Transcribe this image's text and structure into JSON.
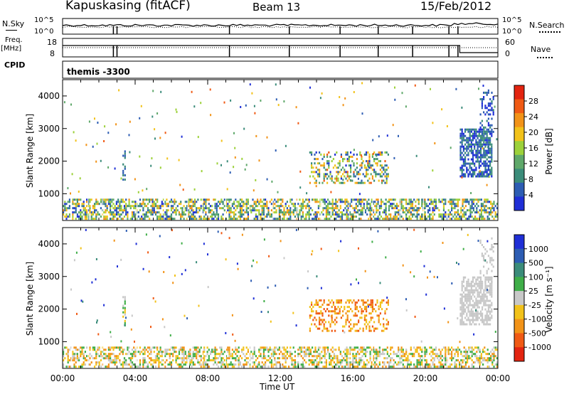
{
  "header": {
    "station": "Kapuskasing (fitACF)",
    "beam": "Beam 13",
    "date": "15/Feb/2012"
  },
  "top_panels": {
    "nsky_label": "N.Sky",
    "nsky_ticks": [
      "10^5",
      "10^0"
    ],
    "nsearch_label": "N.Search",
    "nsearch_ticks": [
      "10^5",
      "10^0"
    ],
    "freq_label_1": "Freq.",
    "freq_label_2": "[MHz]",
    "freq_ticks": [
      "18",
      "8"
    ],
    "nave_label": "Nave",
    "nave_ticks": [
      "60",
      "0"
    ],
    "cpid_label": "CPID",
    "cpid_value": "themis -3300"
  },
  "x_axis": {
    "label": "Time UT",
    "ticks": [
      "00:00",
      "04:00",
      "08:00",
      "12:00",
      "16:00",
      "20:00",
      "00:00"
    ]
  },
  "colors": {
    "power": [
      "#1f2fd6",
      "#2d5db3",
      "#3b8c7a",
      "#5fa86a",
      "#9cd13a",
      "#f2c21a",
      "#f29318",
      "#f05a14",
      "#e32410"
    ],
    "velocity": [
      "#1f2fd6",
      "#2d5db3",
      "#3b8c7a",
      "#3fae48",
      "#c8c8c8",
      "#f2c21a",
      "#f29318",
      "#f05a14",
      "#e32410"
    ]
  },
  "chart_data": [
    {
      "type": "heatmap",
      "title": "Power",
      "ylabel": "Slant Range [km]",
      "xlabel": "",
      "y_ticks": [
        "1000",
        "2000",
        "3000",
        "4000"
      ],
      "colorbar_label": "Power [dB]",
      "colorbar_ticks": [
        "4",
        "8",
        "12",
        "16",
        "20",
        "24",
        "28"
      ],
      "zlim": [
        0,
        30
      ],
      "ylim": [
        180,
        4500
      ],
      "xlim_hours": [
        0,
        24
      ],
      "regions": [
        {
          "t0": 0.0,
          "t1": 24.0,
          "r0": 200,
          "r1": 850,
          "density": 0.55,
          "zmin": 2,
          "zmax": 22
        },
        {
          "t0": 13.6,
          "t1": 18.0,
          "r0": 1300,
          "r1": 2300,
          "density": 0.35,
          "zmin": 2,
          "zmax": 24
        },
        {
          "t0": 21.9,
          "t1": 23.7,
          "r0": 1500,
          "r1": 3000,
          "density": 0.7,
          "zmin": 1,
          "zmax": 10
        },
        {
          "t0": 23.0,
          "t1": 23.8,
          "r0": 2800,
          "r1": 4200,
          "density": 0.25,
          "zmin": 1,
          "zmax": 8
        },
        {
          "t0": 3.3,
          "t1": 3.5,
          "r0": 1400,
          "r1": 2400,
          "density": 0.5,
          "zmin": 3,
          "zmax": 10
        }
      ],
      "sparse": {
        "t0": 0,
        "t1": 24,
        "r0": 900,
        "r1": 4400,
        "count": 160,
        "zmin": 2,
        "zmax": 26
      }
    },
    {
      "type": "heatmap",
      "title": "Velocity",
      "ylabel": "Slant Range [km]",
      "xlabel": "Time UT",
      "y_ticks": [
        "1000",
        "2000",
        "3000",
        "4000"
      ],
      "colorbar_label": "Velocity [m s⁻¹]",
      "colorbar_ticks": [
        "1000",
        "500",
        "100",
        "25",
        "-25",
        "-100",
        "-500",
        "-1000"
      ],
      "zlim": [
        -1000,
        1000
      ],
      "ylim": [
        180,
        4500
      ],
      "xlim_hours": [
        0,
        24
      ],
      "regions": [
        {
          "t0": 0.0,
          "t1": 24.0,
          "r0": 200,
          "r1": 850,
          "density": 0.5,
          "zmin": 3,
          "zmax": 7
        },
        {
          "t0": 13.6,
          "t1": 18.0,
          "r0": 1300,
          "r1": 2300,
          "density": 0.35,
          "zmin": 5,
          "zmax": 8
        },
        {
          "t0": 21.9,
          "t1": 23.7,
          "r0": 1500,
          "r1": 3000,
          "density": 0.65,
          "zmin": 4,
          "zmax": 5
        },
        {
          "t0": 23.0,
          "t1": 23.8,
          "r0": 2800,
          "r1": 4200,
          "density": 0.2,
          "zmin": 4,
          "zmax": 5
        },
        {
          "t0": 3.3,
          "t1": 3.5,
          "r0": 1400,
          "r1": 2400,
          "density": 0.5,
          "zmin": 3,
          "zmax": 6
        }
      ],
      "sparse": {
        "t0": 0,
        "t1": 24,
        "r0": 900,
        "r1": 4400,
        "count": 140,
        "zmin": 0,
        "zmax": 8
      }
    }
  ]
}
